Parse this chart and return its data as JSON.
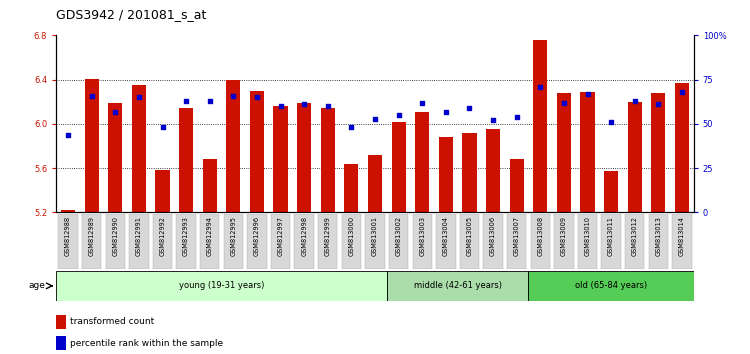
{
  "title": "GDS3942 / 201081_s_at",
  "samples": [
    "GSM812988",
    "GSM812989",
    "GSM812990",
    "GSM812991",
    "GSM812992",
    "GSM812993",
    "GSM812994",
    "GSM812995",
    "GSM812996",
    "GSM812997",
    "GSM812998",
    "GSM812999",
    "GSM813000",
    "GSM813001",
    "GSM813002",
    "GSM813003",
    "GSM813004",
    "GSM813005",
    "GSM813006",
    "GSM813007",
    "GSM813008",
    "GSM813009",
    "GSM813010",
    "GSM813011",
    "GSM813012",
    "GSM813013",
    "GSM813014"
  ],
  "bar_values": [
    5.22,
    6.41,
    6.19,
    6.35,
    5.58,
    6.14,
    5.68,
    6.4,
    6.3,
    6.16,
    6.19,
    6.14,
    5.64,
    5.72,
    6.02,
    6.11,
    5.88,
    5.92,
    5.95,
    5.68,
    6.76,
    6.28,
    6.29,
    5.57,
    6.2,
    6.28,
    6.37
  ],
  "percentile_values": [
    44,
    66,
    57,
    65,
    48,
    63,
    63,
    66,
    65,
    60,
    61,
    60,
    48,
    53,
    55,
    62,
    57,
    59,
    52,
    54,
    71,
    62,
    67,
    51,
    63,
    61,
    68
  ],
  "bar_color": "#cc1100",
  "dot_color": "#0000cc",
  "ylim_left": [
    5.2,
    6.8
  ],
  "ylim_right": [
    0,
    100
  ],
  "yticks_left": [
    5.2,
    5.6,
    6.0,
    6.4,
    6.8
  ],
  "yticks_right": [
    0,
    25,
    50,
    75,
    100
  ],
  "ytick_labels_right": [
    "0",
    "25",
    "50",
    "75",
    "100%"
  ],
  "grid_values": [
    5.6,
    6.0,
    6.4
  ],
  "group_labels": [
    "young (19-31 years)",
    "middle (42-61 years)",
    "old (65-84 years)"
  ],
  "group_ranges": [
    [
      0,
      13
    ],
    [
      14,
      19
    ],
    [
      20,
      26
    ]
  ],
  "group_colors_light": [
    "#ccffcc",
    "#aaddaa"
  ],
  "group_colors": [
    "#ccffcc",
    "#aaddaa",
    "#66cc66"
  ],
  "age_label": "age",
  "legend_items": [
    "transformed count",
    "percentile rank within the sample"
  ],
  "background_color": "#ffffff",
  "bar_width": 0.6,
  "title_fontsize": 9,
  "tick_fontsize": 6,
  "axis_label_color_left": "#cc1100",
  "axis_label_color_right": "#0000cc"
}
